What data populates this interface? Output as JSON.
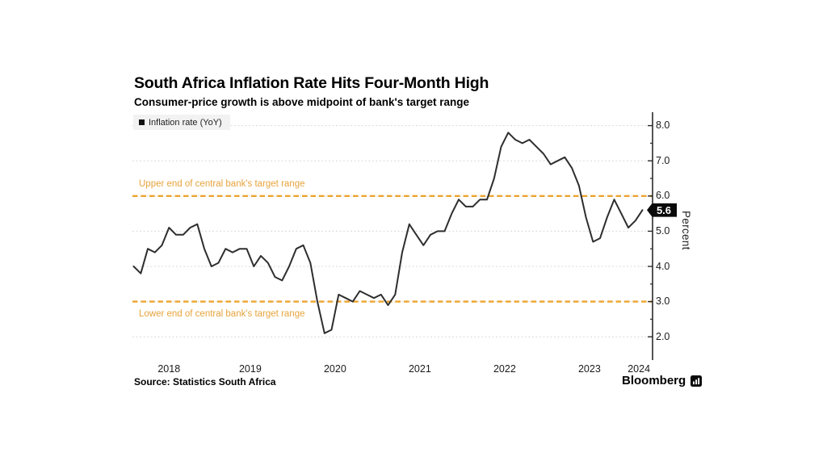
{
  "header": {
    "title": "South Africa Inflation Rate Hits Four-Month High",
    "subtitle": "Consumer-price growth is above midpoint of bank's target range"
  },
  "y_axis": {
    "unit_label": "Percent",
    "tick_labels": [
      "8.0",
      "7.0",
      "6.0",
      "5.0",
      "4.0",
      "3.0",
      "2.0"
    ]
  },
  "badge": {
    "value": "5.6"
  },
  "footer": {
    "source": "Source: Statistics South Africa",
    "brand": "Bloomberg"
  },
  "colors": {
    "accent_orange": "#ECA42D",
    "annotation_orange": "#E7A33C",
    "line": "#2E2E2E",
    "badge_bg": "#0A0A0A",
    "legend_bg": "#F2F2F2",
    "grid": "#D9D9D9",
    "axis": "#2A2A2A"
  },
  "chart_data": {
    "type": "line",
    "title": "South Africa Inflation Rate Hits Four-Month High",
    "subtitle": "Consumer-price growth is above midpoint of bank's target range",
    "xlabel": "",
    "ylabel": "Percent",
    "ylim": [
      1.8,
      8.4
    ],
    "y_major_ticks": [
      2,
      3,
      4,
      5,
      6,
      7,
      8
    ],
    "y_minor_ticks": [
      2.5,
      3.5,
      4.5,
      5.5,
      6.5,
      7.5
    ],
    "grid": "horizontal-dotted",
    "legend_position": "top-left",
    "x_tick_labels": [
      "2018",
      "2019",
      "2020",
      "2021",
      "2022",
      "2023",
      "2024"
    ],
    "last_value_label": "5.6",
    "reference_lines": [
      {
        "value": 6.0,
        "label": "Upper end of central bank's target range",
        "style": "dashed"
      },
      {
        "value": 3.0,
        "label": "Lower end of central bank's target range",
        "style": "dashed"
      }
    ],
    "series": [
      {
        "name": "Inflation rate (YoY)",
        "points": [
          [
            "2018-02",
            4.0
          ],
          [
            "2018-03",
            3.8
          ],
          [
            "2018-04",
            4.5
          ],
          [
            "2018-05",
            4.4
          ],
          [
            "2018-06",
            4.6
          ],
          [
            "2018-07",
            5.1
          ],
          [
            "2018-08",
            4.9
          ],
          [
            "2018-09",
            4.9
          ],
          [
            "2018-10",
            5.1
          ],
          [
            "2018-11",
            5.2
          ],
          [
            "2018-12",
            4.5
          ],
          [
            "2019-01",
            4.0
          ],
          [
            "2019-02",
            4.1
          ],
          [
            "2019-03",
            4.5
          ],
          [
            "2019-04",
            4.4
          ],
          [
            "2019-05",
            4.5
          ],
          [
            "2019-06",
            4.5
          ],
          [
            "2019-07",
            4.0
          ],
          [
            "2019-08",
            4.3
          ],
          [
            "2019-09",
            4.1
          ],
          [
            "2019-10",
            3.7
          ],
          [
            "2019-11",
            3.6
          ],
          [
            "2019-12",
            4.0
          ],
          [
            "2020-01",
            4.5
          ],
          [
            "2020-02",
            4.6
          ],
          [
            "2020-03",
            4.1
          ],
          [
            "2020-04",
            3.0
          ],
          [
            "2020-05",
            2.1
          ],
          [
            "2020-06",
            2.2
          ],
          [
            "2020-07",
            3.2
          ],
          [
            "2020-08",
            3.1
          ],
          [
            "2020-09",
            3.0
          ],
          [
            "2020-10",
            3.3
          ],
          [
            "2020-11",
            3.2
          ],
          [
            "2020-12",
            3.1
          ],
          [
            "2021-01",
            3.2
          ],
          [
            "2021-02",
            2.9
          ],
          [
            "2021-03",
            3.2
          ],
          [
            "2021-04",
            4.4
          ],
          [
            "2021-05",
            5.2
          ],
          [
            "2021-06",
            4.9
          ],
          [
            "2021-07",
            4.6
          ],
          [
            "2021-08",
            4.9
          ],
          [
            "2021-09",
            5.0
          ],
          [
            "2021-10",
            5.0
          ],
          [
            "2021-11",
            5.5
          ],
          [
            "2021-12",
            5.9
          ],
          [
            "2022-01",
            5.7
          ],
          [
            "2022-02",
            5.7
          ],
          [
            "2022-03",
            5.9
          ],
          [
            "2022-04",
            5.9
          ],
          [
            "2022-05",
            6.5
          ],
          [
            "2022-06",
            7.4
          ],
          [
            "2022-07",
            7.8
          ],
          [
            "2022-08",
            7.6
          ],
          [
            "2022-09",
            7.5
          ],
          [
            "2022-10",
            7.6
          ],
          [
            "2022-11",
            7.4
          ],
          [
            "2022-12",
            7.2
          ],
          [
            "2023-01",
            6.9
          ],
          [
            "2023-02",
            7.0
          ],
          [
            "2023-03",
            7.1
          ],
          [
            "2023-04",
            6.8
          ],
          [
            "2023-05",
            6.3
          ],
          [
            "2023-06",
            5.4
          ],
          [
            "2023-07",
            4.7
          ],
          [
            "2023-08",
            4.8
          ],
          [
            "2023-09",
            5.4
          ],
          [
            "2023-10",
            5.9
          ],
          [
            "2023-11",
            5.5
          ],
          [
            "2023-12",
            5.1
          ],
          [
            "2024-01",
            5.3
          ],
          [
            "2024-02",
            5.6
          ]
        ]
      }
    ]
  }
}
